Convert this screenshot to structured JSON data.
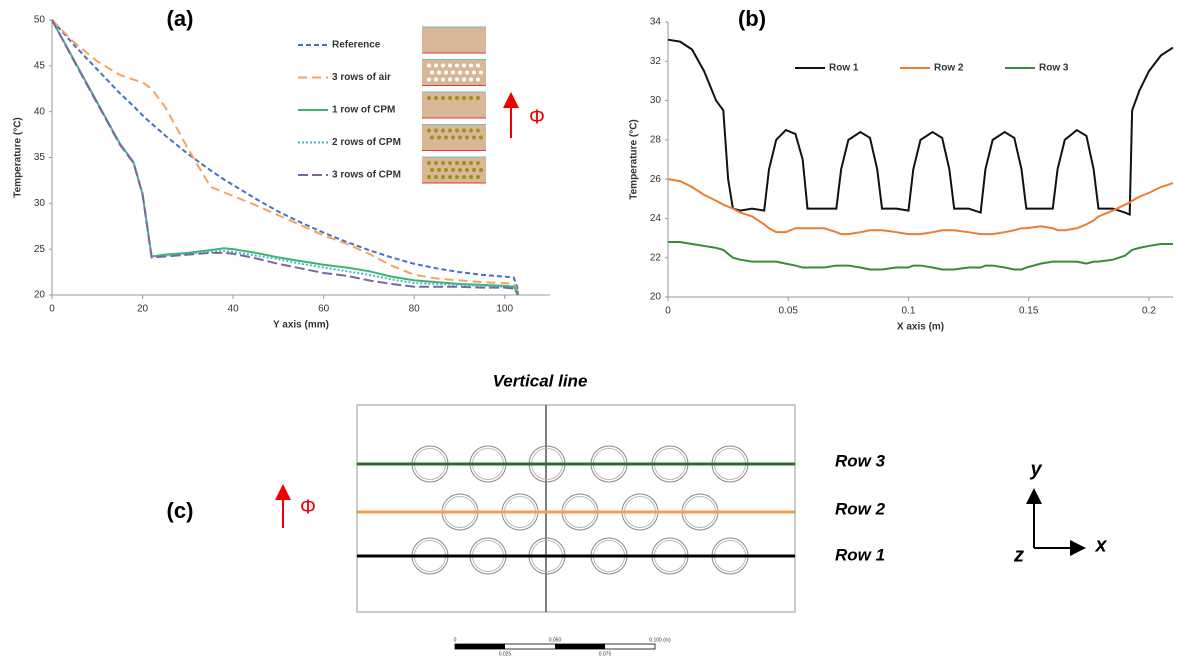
{
  "chart_data": [
    {
      "type": "line",
      "panel_label": "(a)",
      "flux_symbol": "Φ",
      "x_label": "Y axis (mm)",
      "y_label": "Temperature (°C)",
      "x": [
        0,
        5,
        10,
        15,
        18,
        20,
        22,
        25,
        30,
        35,
        38,
        40,
        45,
        50,
        55,
        60,
        65,
        70,
        75,
        80,
        85,
        90,
        95,
        100,
        102,
        103
      ],
      "xlim": [
        0,
        110
      ],
      "xticks": [
        0,
        20,
        40,
        60,
        80,
        100
      ],
      "ylim": [
        20,
        50
      ],
      "yticks": [
        20,
        25,
        30,
        35,
        40,
        45,
        50
      ],
      "legend": "upper right",
      "series": [
        {
          "name": "Reference",
          "color": "#4472c4",
          "dash": "5,3",
          "values": [
            50,
            47.2,
            44.6,
            42,
            40.6,
            39.6,
            38.7,
            37.4,
            35.4,
            33.6,
            32.6,
            32,
            30.5,
            29.1,
            27.9,
            26.8,
            25.8,
            24.9,
            24.1,
            23.4,
            22.9,
            22.5,
            22.2,
            22,
            21.9,
            20.5
          ]
        },
        {
          "name": "3 rows of air",
          "color": "#f4a460",
          "dash": "9,5",
          "values": [
            50,
            47.5,
            45.5,
            44,
            43.5,
            43.2,
            42.5,
            40.5,
            36,
            31.8,
            31.2,
            30.8,
            29.8,
            28.7,
            27.6,
            26.5,
            25.6,
            24.5,
            23.2,
            22.2,
            21.8,
            21.6,
            21.4,
            21.3,
            21.2,
            20.3
          ]
        },
        {
          "name": "1 row of CPM",
          "color": "#3cb371",
          "dash": "none",
          "values": [
            50,
            45.5,
            41,
            36.5,
            34.5,
            31,
            24.2,
            24.4,
            24.6,
            24.9,
            25.1,
            25,
            24.6,
            24.1,
            23.7,
            23.3,
            23,
            22.6,
            22,
            21.6,
            21.4,
            21.2,
            21.1,
            21,
            20.9,
            20.2
          ]
        },
        {
          "name": "2 rows of CPM",
          "color": "#4bb8c8",
          "dash": "2,2",
          "values": [
            50,
            45.5,
            41,
            36.5,
            34.5,
            31,
            24.2,
            24.3,
            24.5,
            24.7,
            24.8,
            24.7,
            24.3,
            23.9,
            23.4,
            23,
            22.6,
            22.2,
            21.7,
            21.3,
            21.2,
            21.1,
            21,
            20.9,
            20.8,
            20.1
          ]
        },
        {
          "name": "3 rows of CPM",
          "color": "#8064a2",
          "dash": "10,4",
          "values": [
            50,
            45.4,
            40.9,
            36.4,
            34.4,
            31,
            24.1,
            24.2,
            24.4,
            24.6,
            24.6,
            24.5,
            24,
            23.4,
            22.9,
            22.4,
            22.1,
            21.6,
            21.2,
            20.9,
            20.9,
            20.9,
            20.8,
            20.8,
            20.7,
            20
          ]
        }
      ]
    },
    {
      "type": "line",
      "panel_label": "(b)",
      "x_label": "X axis (m)",
      "y_label": "Temperature (°C)",
      "x": [
        0,
        0.005,
        0.01,
        0.015,
        0.02,
        0.023,
        0.025,
        0.027,
        0.03,
        0.035,
        0.04,
        0.042,
        0.045,
        0.049,
        0.053,
        0.056,
        0.058,
        0.065,
        0.07,
        0.072,
        0.075,
        0.08,
        0.084,
        0.087,
        0.089,
        0.095,
        0.1,
        0.102,
        0.105,
        0.11,
        0.114,
        0.117,
        0.119,
        0.125,
        0.13,
        0.132,
        0.135,
        0.14,
        0.144,
        0.147,
        0.149,
        0.155,
        0.16,
        0.162,
        0.165,
        0.17,
        0.174,
        0.177,
        0.179,
        0.185,
        0.19,
        0.192,
        0.193,
        0.196,
        0.2,
        0.205,
        0.21
      ],
      "xlim": [
        0,
        0.21
      ],
      "xticks": [
        0,
        0.05,
        0.1,
        0.15,
        0.2
      ],
      "ylim": [
        20,
        34
      ],
      "yticks": [
        20,
        22,
        24,
        26,
        28,
        30,
        32,
        34
      ],
      "legend": "upper center",
      "series": [
        {
          "name": "Row 1",
          "color": "#111111",
          "dash": "none",
          "values": [
            33.1,
            33,
            32.6,
            31.5,
            30,
            29.5,
            26,
            24.5,
            24.4,
            24.5,
            24.4,
            26.5,
            28,
            28.5,
            28.3,
            27,
            24.5,
            24.5,
            24.5,
            26.5,
            28,
            28.4,
            28.1,
            26.5,
            24.5,
            24.5,
            24.4,
            26.5,
            28,
            28.4,
            28.1,
            26.5,
            24.5,
            24.5,
            24.3,
            26.5,
            28,
            28.4,
            28.1,
            26.5,
            24.5,
            24.5,
            24.5,
            26.5,
            28,
            28.5,
            28.2,
            26.5,
            24.5,
            24.5,
            24.3,
            24.2,
            29.5,
            30.5,
            31.5,
            32.3,
            32.7
          ]
        },
        {
          "name": "Row 2",
          "color": "#ed7d31",
          "dash": "none",
          "values": [
            26,
            25.9,
            25.6,
            25.2,
            24.9,
            24.7,
            24.6,
            24.5,
            24.3,
            24.1,
            23.7,
            23.5,
            23.3,
            23.3,
            23.5,
            23.5,
            23.5,
            23.5,
            23.3,
            23.2,
            23.2,
            23.3,
            23.4,
            23.4,
            23.4,
            23.3,
            23.2,
            23.2,
            23.2,
            23.3,
            23.4,
            23.4,
            23.4,
            23.3,
            23.2,
            23.2,
            23.2,
            23.3,
            23.4,
            23.5,
            23.5,
            23.6,
            23.5,
            23.4,
            23.4,
            23.5,
            23.7,
            23.9,
            24.1,
            24.4,
            24.7,
            24.8,
            24.9,
            25.1,
            25.3,
            25.6,
            25.8
          ]
        },
        {
          "name": "Row 3",
          "color": "#3a8a3a",
          "dash": "none",
          "values": [
            22.8,
            22.8,
            22.7,
            22.6,
            22.5,
            22.4,
            22.2,
            22,
            21.9,
            21.8,
            21.8,
            21.8,
            21.8,
            21.7,
            21.6,
            21.5,
            21.5,
            21.5,
            21.6,
            21.6,
            21.6,
            21.5,
            21.4,
            21.4,
            21.4,
            21.5,
            21.5,
            21.6,
            21.6,
            21.5,
            21.4,
            21.4,
            21.4,
            21.5,
            21.5,
            21.6,
            21.6,
            21.5,
            21.4,
            21.4,
            21.5,
            21.7,
            21.8,
            21.8,
            21.8,
            21.8,
            21.7,
            21.8,
            21.8,
            21.9,
            22.1,
            22.3,
            22.4,
            22.5,
            22.6,
            22.7,
            22.7
          ]
        }
      ]
    }
  ],
  "panel_c": {
    "panel_label": "(c)",
    "title": "Vertical line",
    "flux_symbol": "Φ",
    "rows": [
      "Row 3",
      "Row 2",
      "Row 1"
    ],
    "axes": {
      "y": "y",
      "x": "x",
      "z": "z"
    },
    "scale_top": [
      "0",
      "0.050",
      "0.100 (m)"
    ],
    "scale_bottom": [
      "0.025",
      "0.075"
    ]
  }
}
